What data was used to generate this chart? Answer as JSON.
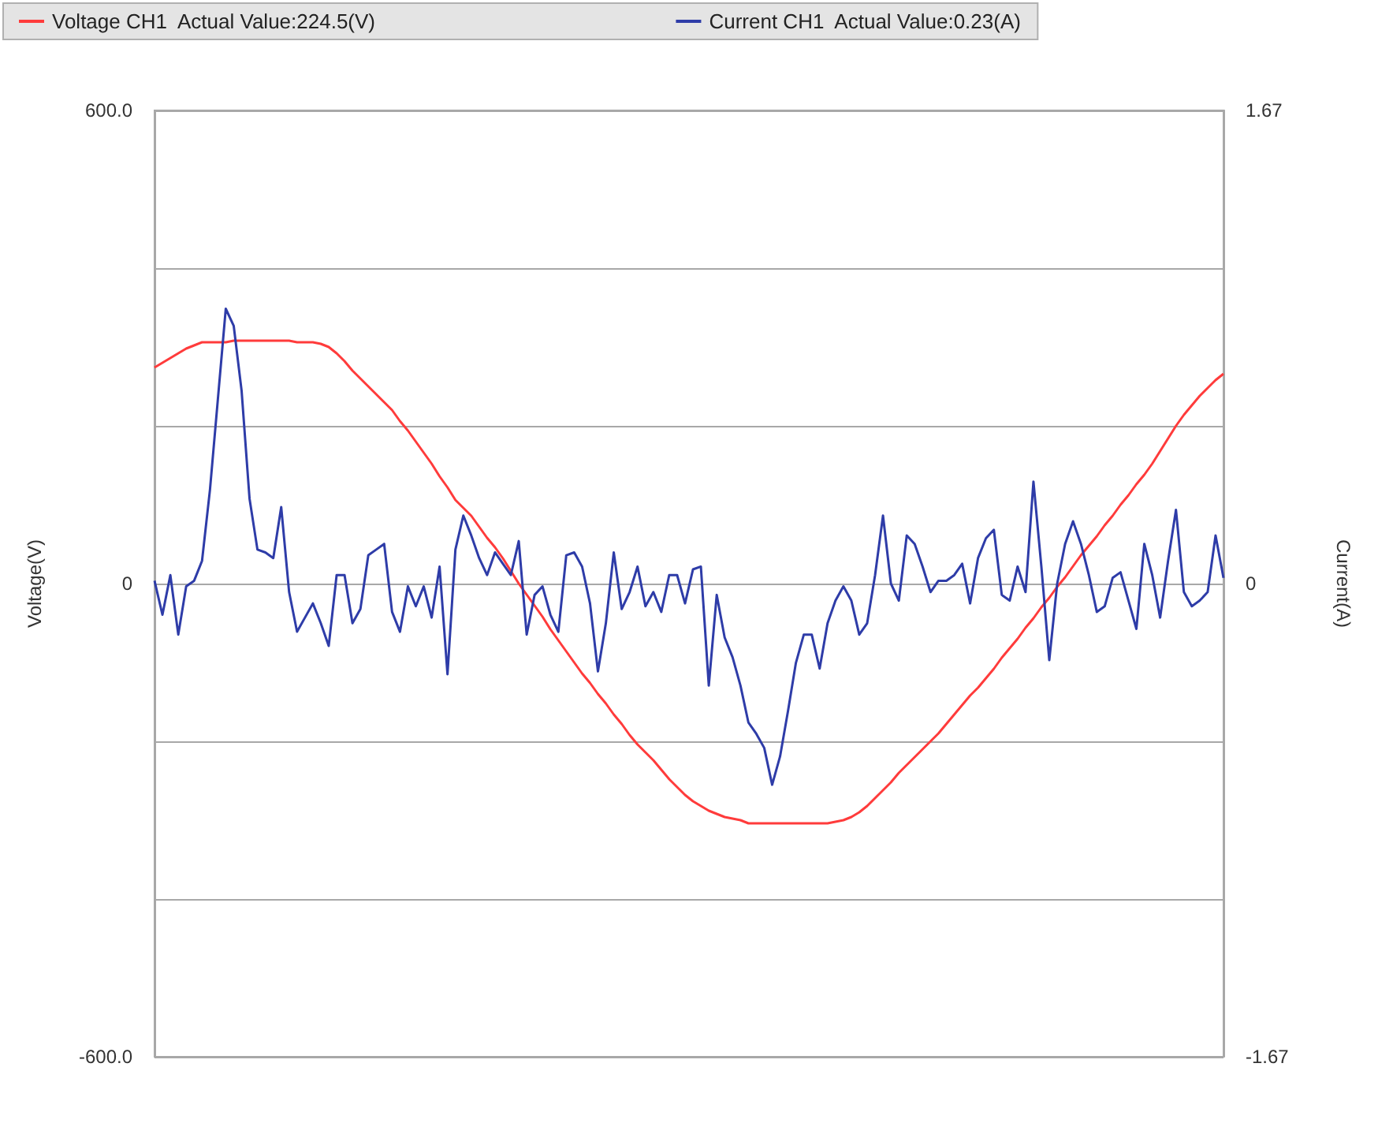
{
  "chart_data": {
    "type": "line",
    "ylabel": "Voltage(V)",
    "y2label": "Current(A)",
    "categories": [
      null,
      null,
      null,
      null,
      null,
      null,
      null,
      null,
      null,
      null,
      null,
      null,
      null,
      null,
      null,
      null,
      null,
      null,
      null,
      null,
      null,
      null,
      null,
      null,
      null,
      null,
      null,
      null,
      null,
      null,
      null,
      null,
      null,
      null,
      null,
      null,
      null,
      null,
      null,
      null,
      null,
      null,
      null,
      null,
      null,
      null,
      null,
      null,
      null,
      null,
      null,
      null,
      null,
      null,
      null,
      null,
      null,
      null,
      null,
      null,
      null,
      null,
      null,
      null,
      null,
      null,
      null,
      null,
      null,
      null,
      null,
      null,
      null,
      null,
      null,
      null,
      null,
      null,
      null,
      null,
      null,
      null,
      null,
      null,
      null,
      null,
      null,
      null,
      null,
      null,
      null,
      null,
      null,
      null,
      null,
      null,
      null,
      null,
      null,
      null,
      null,
      null,
      null,
      null,
      null,
      null,
      null,
      null,
      null,
      null,
      null,
      null,
      null,
      null,
      null,
      null,
      null,
      null,
      null,
      null,
      null,
      null,
      null,
      null,
      null,
      null,
      null,
      null,
      null,
      null,
      null,
      null,
      null,
      null,
      null,
      null
    ],
    "series": [
      {
        "name": "Voltage CH1  Actual Value:224.5(V)",
        "color": "#ff3b3b",
        "values": [
          274,
          280,
          286,
          292,
          298,
          302,
          306,
          306,
          306,
          306,
          308,
          308,
          308,
          308,
          308,
          308,
          308,
          308,
          306,
          306,
          306,
          304,
          300,
          292,
          282,
          270,
          260,
          250,
          240,
          230,
          220,
          206,
          194,
          180,
          166,
          152,
          136,
          122,
          106,
          96,
          86,
          72,
          58,
          46,
          32,
          16,
          0,
          -14,
          -28,
          -42,
          -58,
          -72,
          -86,
          -100,
          -114,
          -126,
          -140,
          -152,
          -166,
          -178,
          -192,
          -204,
          -214,
          -224,
          -236,
          -248,
          -258,
          -268,
          -276,
          -282,
          -288,
          -292,
          -296,
          -298,
          -300,
          -304,
          -304,
          -304,
          -304,
          -304,
          -304,
          -304,
          -304,
          -304,
          -304,
          -304,
          -302,
          -300,
          -296,
          -290,
          -282,
          -272,
          -262,
          -252,
          -240,
          -230,
          -220,
          -210,
          -200,
          -190,
          -178,
          -166,
          -154,
          -142,
          -132,
          -120,
          -108,
          -94,
          -82,
          -70,
          -56,
          -44,
          -30,
          -18,
          -4,
          8,
          22,
          36,
          48,
          60,
          74,
          86,
          100,
          112,
          126,
          138,
          152,
          168,
          184,
          200,
          214,
          226,
          238,
          248,
          258,
          266
        ]
      },
      {
        "name": "Current CH1  Actual Value:0.23(A)",
        "color": "#2e3ca8",
        "axis": "y2",
        "values": [
          0.01,
          -0.11,
          0.03,
          -0.18,
          -0.01,
          0.01,
          0.08,
          0.33,
          0.65,
          0.97,
          0.91,
          0.68,
          0.3,
          0.12,
          0.11,
          0.09,
          0.27,
          -0.03,
          -0.17,
          -0.12,
          -0.07,
          -0.14,
          -0.22,
          0.03,
          0.03,
          -0.14,
          -0.09,
          0.1,
          0.12,
          0.14,
          -0.1,
          -0.17,
          -0.01,
          -0.08,
          -0.01,
          -0.12,
          0.06,
          -0.32,
          0.12,
          0.24,
          0.17,
          0.09,
          0.03,
          0.11,
          0.07,
          0.03,
          0.15,
          -0.18,
          -0.04,
          -0.01,
          -0.11,
          -0.17,
          0.1,
          0.11,
          0.06,
          -0.07,
          -0.31,
          -0.14,
          0.11,
          -0.09,
          -0.03,
          0.06,
          -0.08,
          -0.03,
          -0.1,
          0.03,
          0.03,
          -0.07,
          0.05,
          0.06,
          -0.36,
          -0.04,
          -0.19,
          -0.26,
          -0.36,
          -0.49,
          -0.53,
          -0.58,
          -0.71,
          -0.61,
          -0.45,
          -0.28,
          -0.18,
          -0.18,
          -0.3,
          -0.14,
          -0.06,
          -0.01,
          -0.06,
          -0.18,
          -0.14,
          0.03,
          0.24,
          0.0,
          -0.06,
          0.17,
          0.14,
          0.06,
          -0.03,
          0.01,
          0.01,
          0.03,
          0.07,
          -0.07,
          0.09,
          0.16,
          0.19,
          -0.04,
          -0.06,
          0.06,
          -0.03,
          0.36,
          0.06,
          -0.27,
          0.0,
          0.14,
          0.22,
          0.14,
          0.03,
          -0.1,
          -0.08,
          0.02,
          0.04,
          -0.06,
          -0.16,
          0.14,
          0.03,
          -0.12,
          0.08,
          0.26,
          -0.03,
          -0.08,
          -0.06,
          -0.03,
          0.17,
          0.02
        ]
      }
    ],
    "ylim": [
      -600,
      600
    ],
    "yticks": [
      {
        "value": -600,
        "label": "-600.0"
      },
      {
        "value": -400,
        "label": null
      },
      {
        "value": -200,
        "label": null
      },
      0,
      {
        "value": 200,
        "label": null
      },
      {
        "value": 400,
        "label": null
      },
      {
        "value": 600,
        "label": "600.0"
      }
    ],
    "y2lim": [
      -1.67,
      1.67
    ],
    "y2ticks": [
      -1.67,
      0,
      1.67
    ],
    "grid": "y",
    "legend": "top",
    "tick_labels": "y"
  }
}
